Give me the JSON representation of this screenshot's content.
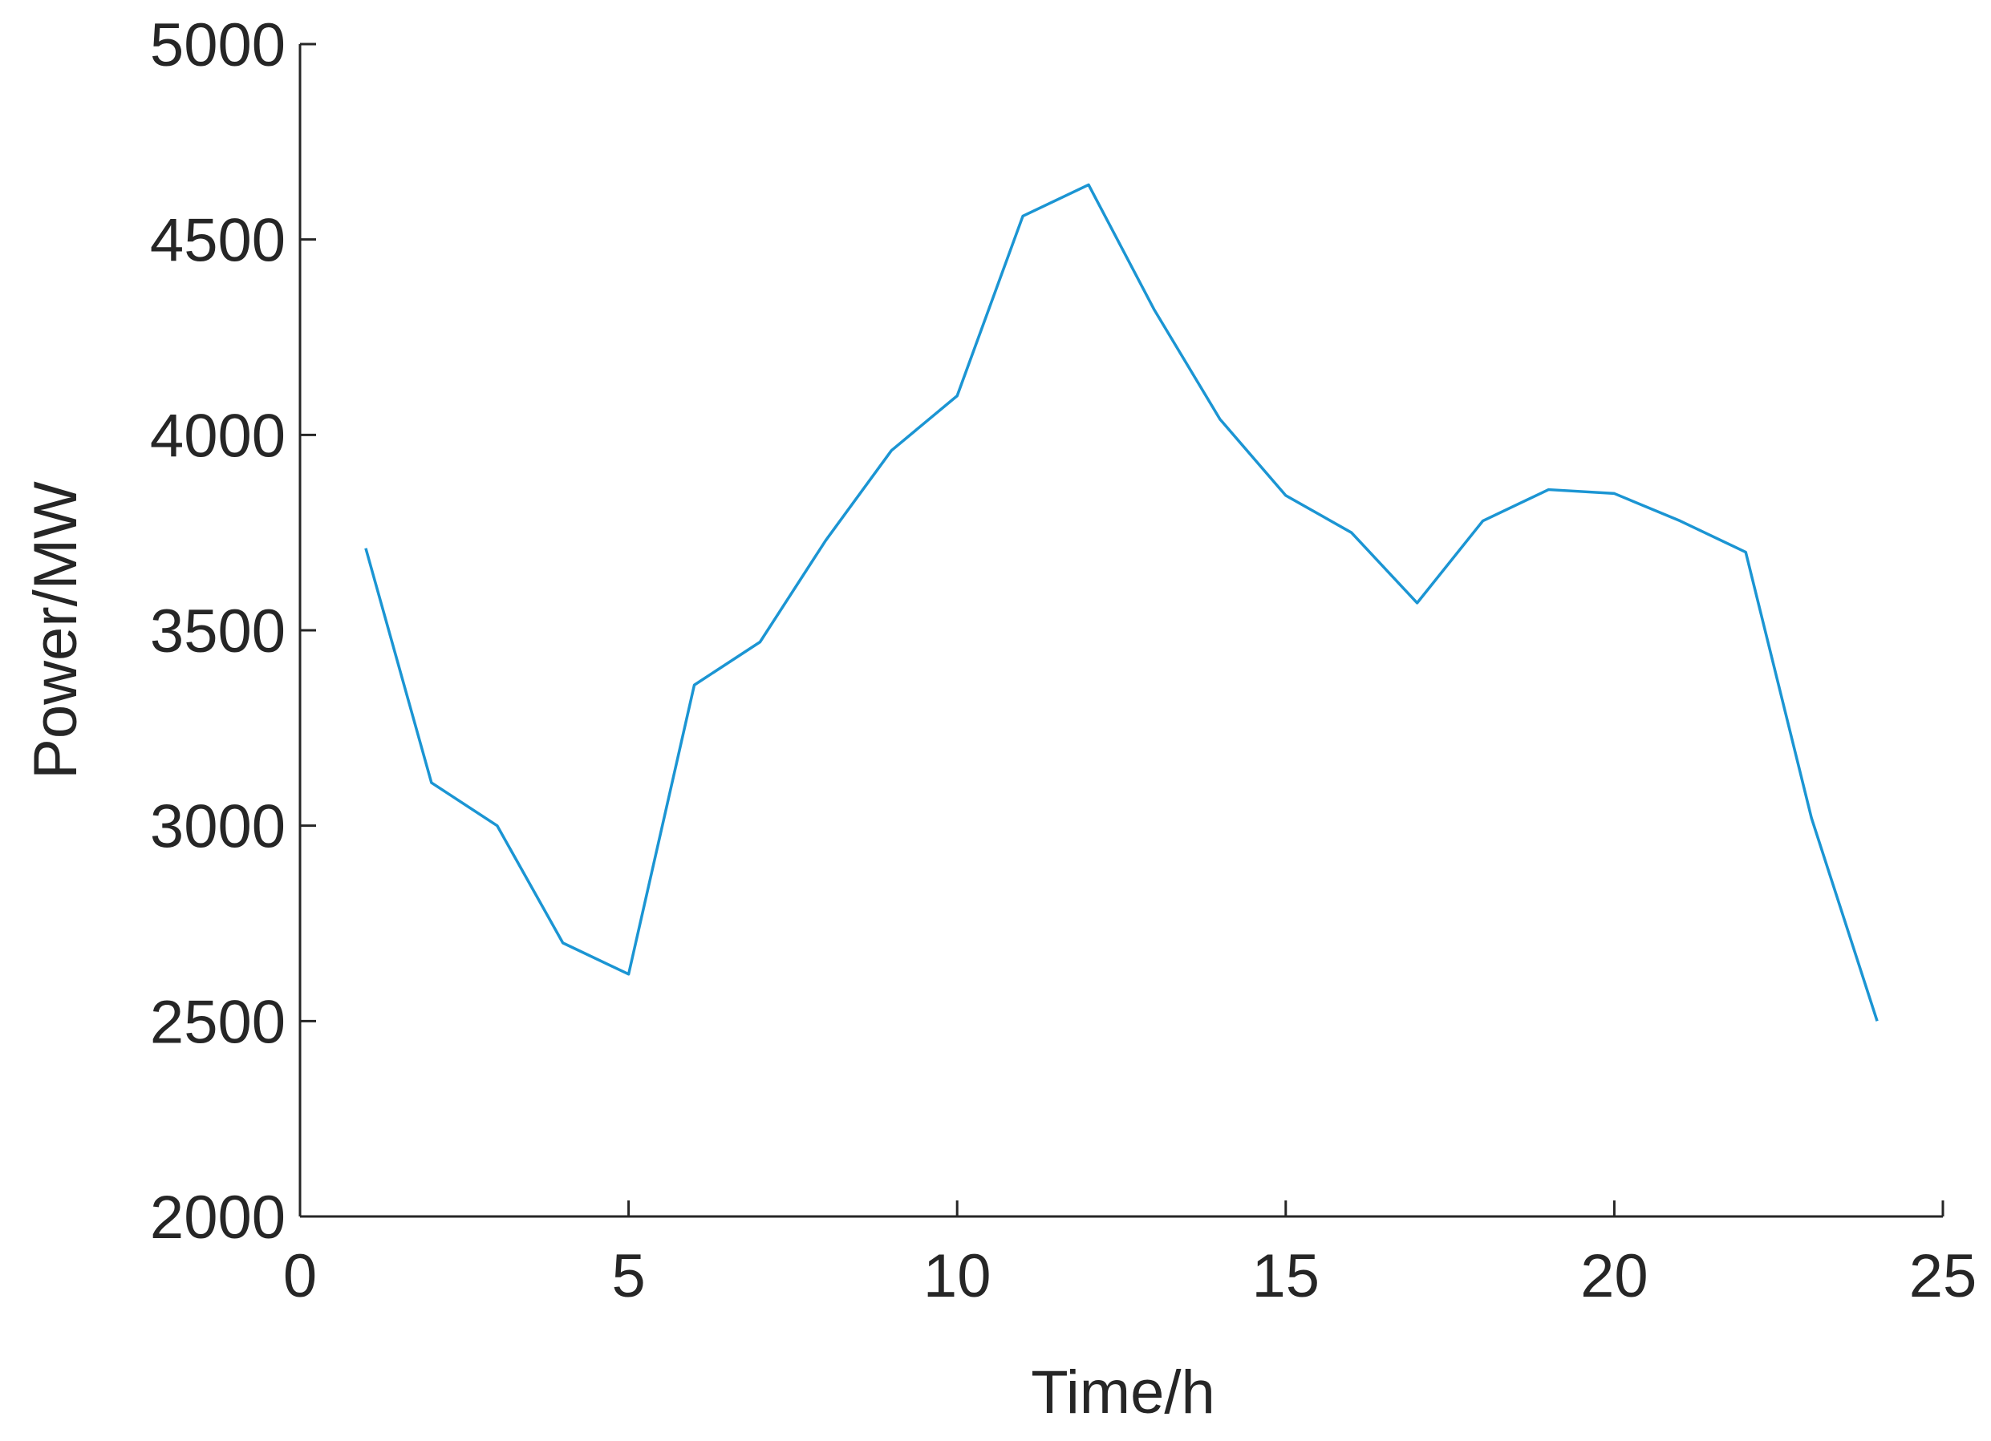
{
  "chart_data": {
    "type": "line",
    "x_label": "Time/h",
    "y_label": "Power/MW",
    "x": [
      1,
      2,
      3,
      4,
      5,
      6,
      7,
      8,
      9,
      10,
      11,
      12,
      13,
      14,
      15,
      16,
      17,
      18,
      19,
      20,
      21,
      22,
      23,
      24
    ],
    "series": [
      {
        "color": "#1b95d3",
        "values": [
          3710,
          3110,
          3000,
          2700,
          2620,
          3360,
          3470,
          3730,
          3960,
          4100,
          4560,
          4640,
          4320,
          4040,
          3845,
          3750,
          3570,
          3780,
          3860,
          3850,
          3780,
          3700,
          3020,
          2500
        ]
      }
    ],
    "xlim": [
      0,
      25
    ],
    "xticks": [
      0,
      5,
      10,
      15,
      20,
      25
    ],
    "ylim": [
      2000,
      5000
    ],
    "yticks": [
      2000,
      2500,
      3000,
      3500,
      4000,
      4500,
      5000
    ]
  }
}
